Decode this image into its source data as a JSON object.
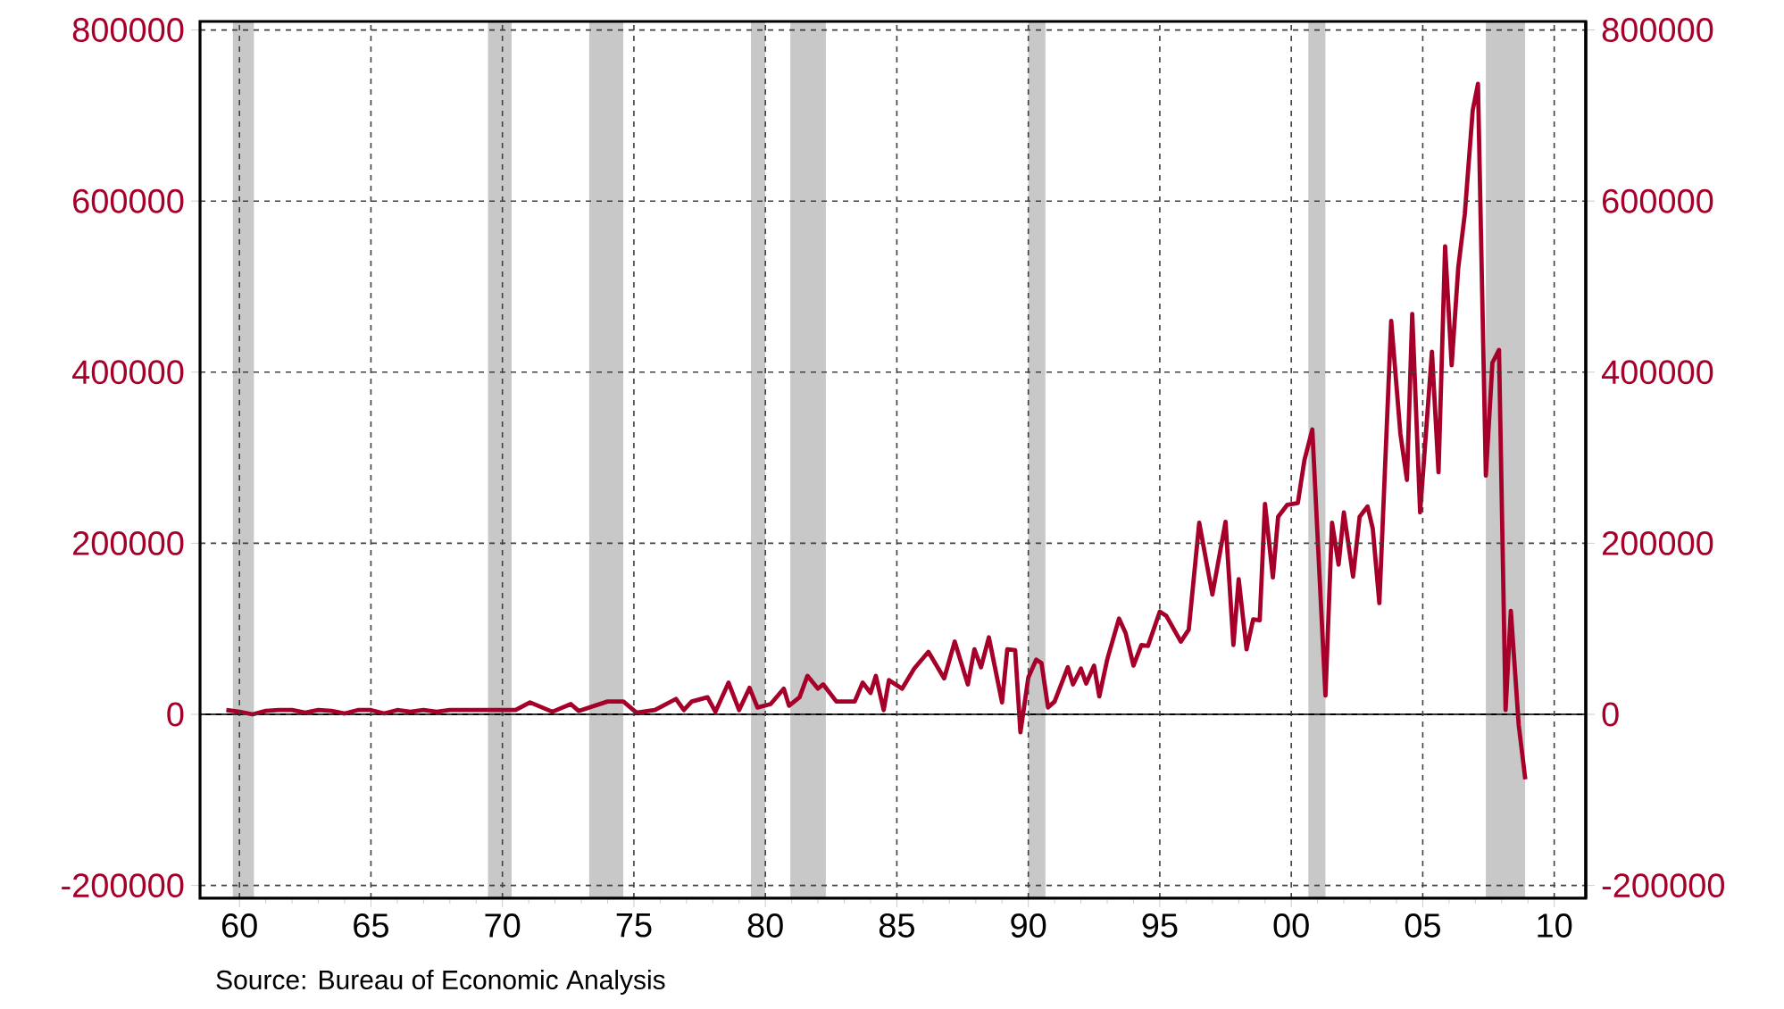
{
  "chart_data": {
    "type": "line",
    "x": [
      1959.5,
      1960.0,
      1960.5,
      1961.0,
      1961.5,
      1962.0,
      1962.5,
      1963.0,
      1963.5,
      1964.0,
      1964.5,
      1965.0,
      1965.5,
      1966.0,
      1966.5,
      1967.0,
      1967.5,
      1968.0,
      1968.5,
      1969.0,
      1969.5,
      1970.0,
      1970.5,
      1971.05,
      1971.9,
      1972.6,
      1972.9,
      1974.0,
      1974.6,
      1975.1,
      1975.8,
      1976.6,
      1976.9,
      1977.2,
      1977.8,
      1978.1,
      1978.6,
      1979.0,
      1979.4,
      1979.7,
      1980.2,
      1980.7,
      1980.9,
      1981.3,
      1981.6,
      1982.0,
      1982.2,
      1982.7,
      1983.4,
      1983.7,
      1984.0,
      1984.2,
      1984.5,
      1984.7,
      1985.2,
      1985.66,
      1986.2,
      1986.8,
      1987.2,
      1987.7,
      1987.95,
      1988.2,
      1988.5,
      1989.0,
      1989.2,
      1989.5,
      1989.7,
      1990.0,
      1990.3,
      1990.5,
      1990.75,
      1991.0,
      1991.5,
      1991.7,
      1992.0,
      1992.2,
      1992.5,
      1992.7,
      1993.0,
      1993.45,
      1993.7,
      1994.0,
      1994.3,
      1994.55,
      1995.0,
      1995.25,
      1995.8,
      1996.1,
      1996.5,
      1997.0,
      1997.5,
      1997.8,
      1998.0,
      1998.3,
      1998.55,
      1998.8,
      1999.0,
      1999.3,
      1999.5,
      1999.85,
      2000.25,
      2000.5,
      2000.8,
      2001.3,
      2001.55,
      2001.8,
      2002.0,
      2002.35,
      2002.6,
      2002.9,
      2003.1,
      2003.35,
      2003.8,
      2004.15,
      2004.4,
      2004.6,
      2004.9,
      2005.35,
      2005.6,
      2005.85,
      2006.1,
      2006.35,
      2006.6,
      2006.9,
      2007.1,
      2007.4,
      2007.65,
      2007.9,
      2008.15,
      2008.35,
      2008.65,
      2008.9
    ],
    "series": [
      {
        "color": "#a6002a",
        "values": [
          5000,
          3000,
          0,
          4000,
          5000,
          5000,
          2000,
          5000,
          4000,
          1000,
          5000,
          5000,
          1000,
          5000,
          3000,
          5000,
          3000,
          5000,
          5000,
          5000,
          5000,
          5000,
          5000,
          14000,
          3000,
          12000,
          4000,
          15000,
          15000,
          2000,
          5000,
          18000,
          5000,
          15000,
          20000,
          3000,
          37000,
          5000,
          31000,
          8000,
          12000,
          30000,
          10000,
          20000,
          45000,
          30000,
          35000,
          15000,
          15000,
          37000,
          25000,
          45000,
          5000,
          40000,
          30000,
          53500,
          73000,
          42000,
          85000,
          35000,
          76000,
          55000,
          90000,
          14000,
          76000,
          75000,
          -21000,
          43000,
          64000,
          60000,
          8000,
          15000,
          55000,
          35000,
          53500,
          36000,
          57000,
          21000,
          64000,
          112000,
          95000,
          57000,
          81000,
          80000,
          120000,
          115000,
          85000,
          99000,
          224000,
          140000,
          225000,
          81000,
          158000,
          76000,
          111000,
          110000,
          246000,
          160000,
          231000,
          245000,
          247000,
          297000,
          333000,
          22000,
          224000,
          175000,
          236000,
          161000,
          231000,
          243000,
          217000,
          130000,
          460000,
          328000,
          274000,
          468000,
          236000,
          424000,
          283000,
          547000,
          408000,
          522000,
          585000,
          706000,
          737000,
          279000,
          411000,
          426000,
          5000,
          121000,
          -12500,
          -76000
        ]
      }
    ],
    "xlim": [
      1958.5,
      2011.2
    ],
    "xticks": [
      {
        "value": 1960,
        "label": "60"
      },
      {
        "value": 1965,
        "label": "65"
      },
      {
        "value": 1970,
        "label": "70"
      },
      {
        "value": 1975,
        "label": "75"
      },
      {
        "value": 1980,
        "label": "80"
      },
      {
        "value": 1985,
        "label": "85"
      },
      {
        "value": 1990,
        "label": "90"
      },
      {
        "value": 1995,
        "label": "95"
      },
      {
        "value": 2000,
        "label": "00"
      },
      {
        "value": 2005,
        "label": "05"
      },
      {
        "value": 2010,
        "label": "10"
      }
    ],
    "ylim": [
      -215000,
      810000
    ],
    "yticks": [
      -200000,
      0,
      200000,
      400000,
      600000,
      800000
    ],
    "y2lim": [
      -215000,
      810000
    ],
    "y2ticks": [
      -200000,
      0,
      200000,
      400000,
      600000,
      800000
    ],
    "grid": true,
    "ref_lines": [
      {
        "axis": "y",
        "value": 0,
        "color": "#000000"
      }
    ],
    "bands": [
      {
        "axis": "x",
        "from": 1959.75,
        "to": 1960.55,
        "color": "#c8c8c8"
      },
      {
        "axis": "x",
        "from": 1969.45,
        "to": 1970.35,
        "color": "#c8c8c8"
      },
      {
        "axis": "x",
        "from": 1973.3,
        "to": 1974.6,
        "color": "#c8c8c8"
      },
      {
        "axis": "x",
        "from": 1979.45,
        "to": 1980.0,
        "color": "#c8c8c8"
      },
      {
        "axis": "x",
        "from": 1980.95,
        "to": 1982.3,
        "color": "#c8c8c8"
      },
      {
        "axis": "x",
        "from": 1990.0,
        "to": 1990.65,
        "color": "#c8c8c8"
      },
      {
        "axis": "x",
        "from": 2000.65,
        "to": 2001.3,
        "color": "#c8c8c8"
      },
      {
        "axis": "x",
        "from": 2007.4,
        "to": 2008.9,
        "color": "#c8c8c8"
      }
    ],
    "annotations": [
      "Source:  Bureau of Economic Analysis"
    ]
  }
}
